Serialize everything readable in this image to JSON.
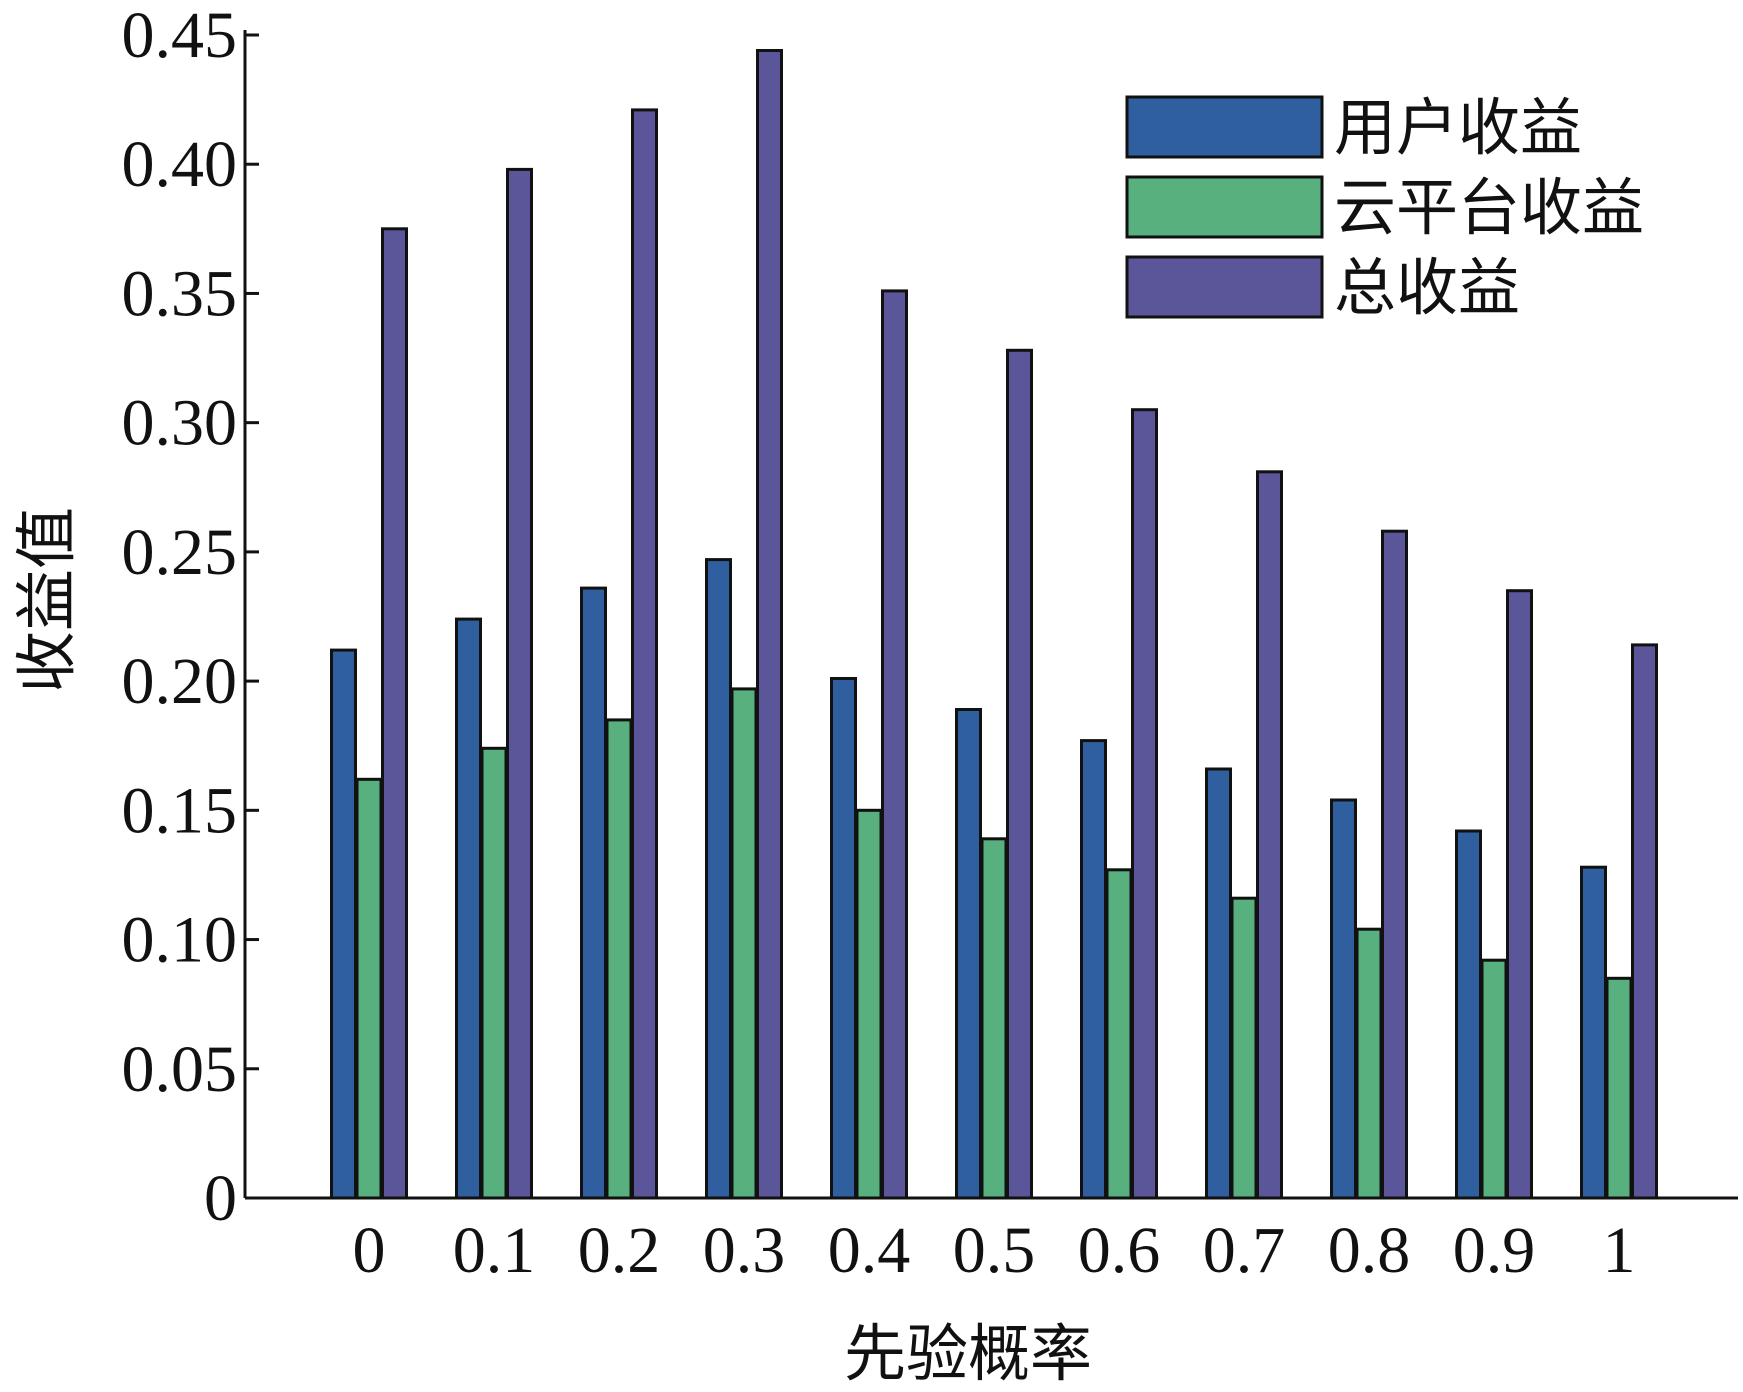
{
  "chart_data": {
    "type": "bar",
    "xlabel": "先验概率",
    "ylabel": "收益值",
    "categories": [
      "0",
      "0.1",
      "0.2",
      "0.3",
      "0.4",
      "0.5",
      "0.6",
      "0.7",
      "0.8",
      "0.9",
      "1"
    ],
    "yticks": [
      "0",
      "0.05",
      "0.10",
      "0.15",
      "0.20",
      "0.25",
      "0.30",
      "0.35",
      "0.40",
      "0.45"
    ],
    "ylim": [
      0,
      0.45
    ],
    "grid": false,
    "legend_position": "top-right",
    "series": [
      {
        "name": "用户收益",
        "color": "#2f5f9e",
        "values": [
          0.212,
          0.224,
          0.236,
          0.247,
          0.201,
          0.189,
          0.177,
          0.166,
          0.154,
          0.142,
          0.128
        ]
      },
      {
        "name": "云平台收益",
        "color": "#58b07e",
        "values": [
          0.162,
          0.174,
          0.185,
          0.197,
          0.15,
          0.139,
          0.127,
          0.116,
          0.104,
          0.092,
          0.085
        ]
      },
      {
        "name": "总收益",
        "color": "#5a5699",
        "values": [
          0.375,
          0.398,
          0.421,
          0.444,
          0.351,
          0.328,
          0.305,
          0.281,
          0.258,
          0.235,
          0.214
        ]
      }
    ]
  }
}
